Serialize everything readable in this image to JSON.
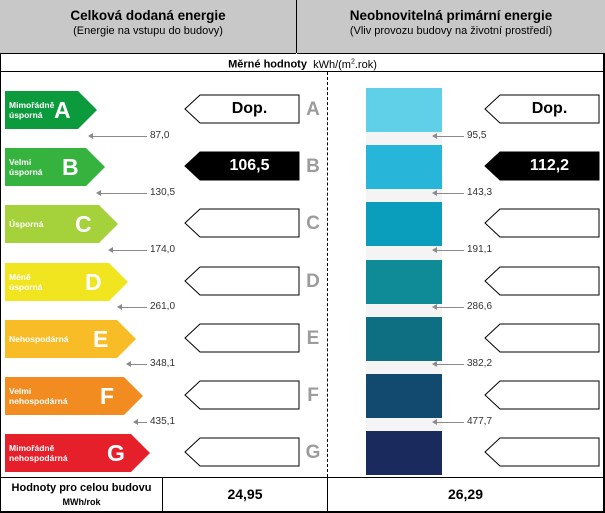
{
  "header": {
    "left_title": "Celková dodaná energie",
    "left_subtitle": "(Energie na vstupu do budovy)",
    "right_title": "Neobnovitelná primární energie",
    "right_subtitle": "(Vliv provozu budovy na životní prostředí)"
  },
  "units": {
    "label": "Měrné hodnoty",
    "unit_pre": "kWh/(m",
    "unit_sup": "2",
    "unit_post": ".rok)"
  },
  "classes": [
    {
      "letter": "A",
      "line1": "Mimořádně",
      "line2": "úsporná",
      "color": "#0b9b3c",
      "text_color": "#ffffff"
    },
    {
      "letter": "B",
      "line1": "Velmi",
      "line2": "úsporná",
      "color": "#36b33e",
      "text_color": "#ffffff"
    },
    {
      "letter": "C",
      "line1": "Úsporná",
      "line2": "",
      "color": "#a5d23a",
      "text_color": "#ffffff"
    },
    {
      "letter": "D",
      "line1": "Méně",
      "line2": "úsporná",
      "color": "#f0e51f",
      "text_color": "#ffffff"
    },
    {
      "letter": "E",
      "line1": "Nehospodárná",
      "line2": "",
      "color": "#f8bc27",
      "text_color": "#ffffff"
    },
    {
      "letter": "F",
      "line1": "Velmi",
      "line2": "nehospodárná",
      "color": "#f28c20",
      "text_color": "#ffffff"
    },
    {
      "letter": "G",
      "line1": "Mimořádně",
      "line2": "nehospodárná",
      "color": "#e5202a",
      "text_color": "#ffffff"
    }
  ],
  "left_thresholds": [
    "87,0",
    "130,5",
    "174,0",
    "261,0",
    "348,1",
    "435,1"
  ],
  "right_thresholds": [
    "95,5",
    "143,3",
    "191,1",
    "286,6",
    "382,2",
    "477,7"
  ],
  "right_colors": [
    "#5fd0e8",
    "#27b6da",
    "#0a9dbc",
    "#0f8b98",
    "#0e6f83",
    "#12496e",
    "#1a2a5c"
  ],
  "left_pointers": [
    {
      "text": "Dop.",
      "filled": false,
      "fill_color": "#ffffff"
    },
    {
      "text": "106,5",
      "filled": true,
      "fill_color": "#000000"
    },
    {
      "text": "",
      "filled": false,
      "fill_color": "#ffffff"
    },
    {
      "text": "",
      "filled": false,
      "fill_color": "#ffffff"
    },
    {
      "text": "",
      "filled": false,
      "fill_color": "#ffffff"
    },
    {
      "text": "",
      "filled": false,
      "fill_color": "#ffffff"
    },
    {
      "text": "",
      "filled": false,
      "fill_color": "#ffffff"
    }
  ],
  "right_pointers": [
    {
      "text": "Dop.",
      "filled": false,
      "fill_color": "#ffffff"
    },
    {
      "text": "112,2",
      "filled": true,
      "fill_color": "#000000"
    },
    {
      "text": "",
      "filled": false,
      "fill_color": "#ffffff"
    },
    {
      "text": "",
      "filled": false,
      "fill_color": "#ffffff"
    },
    {
      "text": "",
      "filled": false,
      "fill_color": "#ffffff"
    },
    {
      "text": "",
      "filled": false,
      "fill_color": "#ffffff"
    },
    {
      "text": "",
      "filled": false,
      "fill_color": "#ffffff"
    }
  ],
  "bottom": {
    "label_line1": "Hodnoty pro celou budovu",
    "label_line2": "MWh/rok",
    "left_value": "24,95",
    "right_value": "26,29"
  }
}
